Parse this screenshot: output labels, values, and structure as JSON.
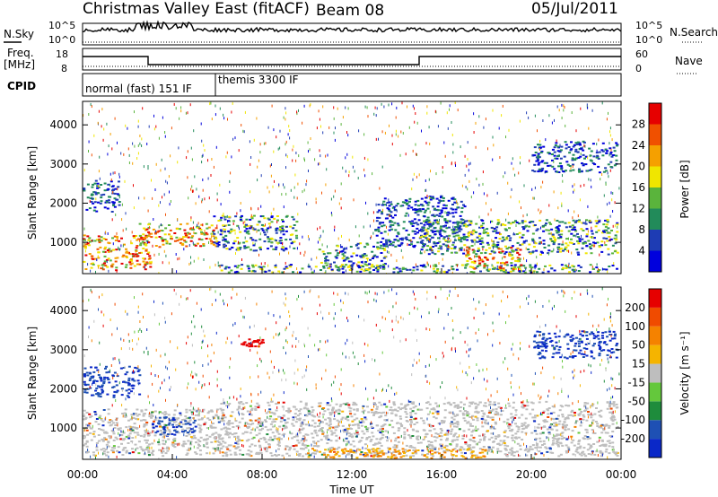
{
  "header": {
    "site": "Christmas Valley East (fitACF)",
    "beam": "Beam 08",
    "date": "05/Jul/2011"
  },
  "aux_panels": {
    "nsky_label": "N.Sky",
    "nsky_ticks": [
      "10^5",
      "10^0"
    ],
    "nsearch_label": "N.Search",
    "nsearch_ticks": [
      "10^5",
      "10^0"
    ],
    "freq_label": "Freq.",
    "freq_unit": "[MHz]",
    "freq_ticks": [
      "18",
      "8"
    ],
    "nave_label": "Nave",
    "nave_ticks": [
      "60",
      "0"
    ],
    "cpid_label": "CPID",
    "cpid_segments": [
      {
        "name": "normal (fast) 151 IF",
        "start_h": 0,
        "end_h": 6
      },
      {
        "name": "themis 3300 IF",
        "start_h": 6,
        "end_h": 24
      }
    ]
  },
  "chart_data": [
    {
      "type": "heatmap",
      "panel": "power",
      "xlabel": "",
      "ylabel": "Slant Range [km]",
      "x_unit": "hours UT",
      "xlim": [
        0,
        24
      ],
      "ylim": [
        200,
        4600
      ],
      "yticks": [
        "1000",
        "2000",
        "3000",
        "4000"
      ],
      "colorbar": {
        "label": "Power [dB]",
        "ticks": [
          "4",
          "8",
          "12",
          "16",
          "20",
          "24",
          "28"
        ],
        "colors": [
          "#0000dd",
          "#1e3cb4",
          "#228b5a",
          "#5ab43c",
          "#f0e600",
          "#f5a000",
          "#f05000",
          "#e60000"
        ]
      },
      "echo_regions": [
        {
          "t": [
            0.0,
            1.6
          ],
          "r": [
            1800,
            2600
          ],
          "level": "low"
        },
        {
          "t": [
            0.0,
            3.0
          ],
          "r": [
            300,
            1200
          ],
          "level": "high"
        },
        {
          "t": [
            2.5,
            6.0
          ],
          "r": [
            900,
            1500
          ],
          "level": "high"
        },
        {
          "t": [
            5.8,
            9.5
          ],
          "r": [
            800,
            1700
          ],
          "level": "mid"
        },
        {
          "t": [
            6.0,
            23.8
          ],
          "r": [
            250,
            450
          ],
          "level": "mid"
        },
        {
          "t": [
            10.5,
            13.5
          ],
          "r": [
            300,
            1000
          ],
          "level": "mid"
        },
        {
          "t": [
            13.0,
            17.0
          ],
          "r": [
            900,
            2200
          ],
          "level": "low"
        },
        {
          "t": [
            15.0,
            23.8
          ],
          "r": [
            700,
            1600
          ],
          "level": "mid"
        },
        {
          "t": [
            17.0,
            19.5
          ],
          "r": [
            300,
            900
          ],
          "level": "high"
        },
        {
          "t": [
            20.0,
            23.8
          ],
          "r": [
            2800,
            3600
          ],
          "level": "low"
        }
      ]
    },
    {
      "type": "heatmap",
      "panel": "velocity",
      "xlabel": "Time UT",
      "ylabel": "Slant Range [km]",
      "x_unit": "hours UT",
      "xlim": [
        0,
        24
      ],
      "ylim": [
        200,
        4600
      ],
      "xticks": [
        "00:00",
        "04:00",
        "08:00",
        "12:00",
        "16:00",
        "20:00",
        "00:00"
      ],
      "yticks": [
        "1000",
        "2000",
        "3000",
        "4000"
      ],
      "colorbar": {
        "label": "Velocity [m s⁻¹]",
        "ticks": [
          "200",
          "100",
          "50",
          "15",
          "-15",
          "-50",
          "-100",
          "-200"
        ],
        "colors": [
          "#0a28c8",
          "#1e50b4",
          "#1e8c3c",
          "#64c83c",
          "#bebebe",
          "#f5b400",
          "#f58200",
          "#f04b00",
          "#e60000"
        ]
      },
      "echo_regions": [
        {
          "t": [
            0.0,
            2.5
          ],
          "r": [
            1800,
            2600
          ],
          "level": "toward"
        },
        {
          "t": [
            0.0,
            6.0
          ],
          "r": [
            300,
            1500
          ],
          "level": "ground"
        },
        {
          "t": [
            3.0,
            5.0
          ],
          "r": [
            850,
            1300
          ],
          "level": "toward"
        },
        {
          "t": [
            6.0,
            23.8
          ],
          "r": [
            300,
            1700
          ],
          "level": "ground"
        },
        {
          "t": [
            7.0,
            8.0
          ],
          "r": [
            3100,
            3300
          ],
          "level": "away"
        },
        {
          "t": [
            10.0,
            18.0
          ],
          "r": [
            250,
            500
          ],
          "level": "away_low"
        },
        {
          "t": [
            20.0,
            23.8
          ],
          "r": [
            2800,
            3500
          ],
          "level": "toward"
        }
      ]
    }
  ]
}
